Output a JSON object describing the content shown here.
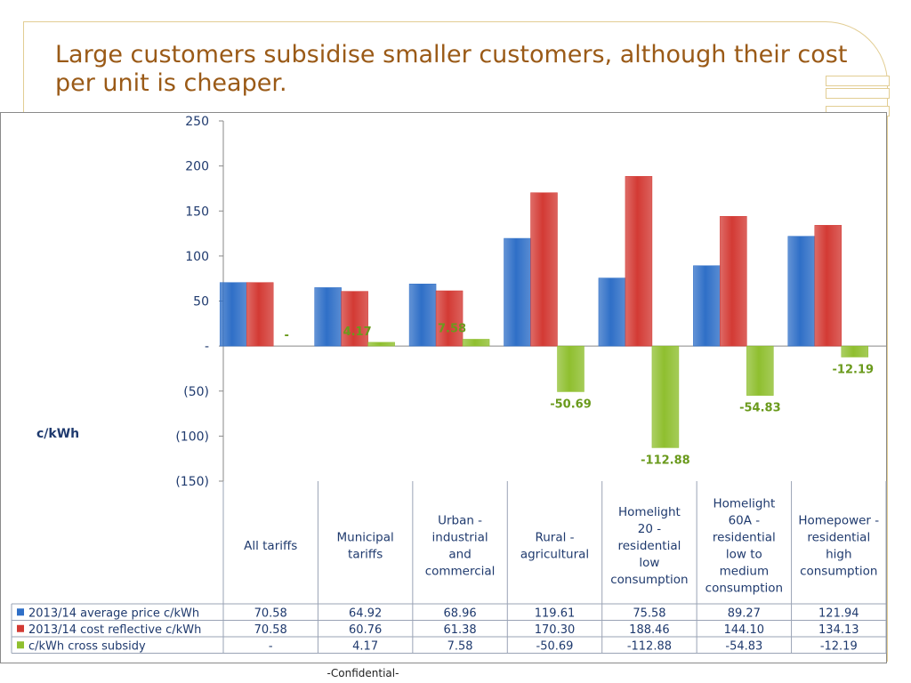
{
  "slide": {
    "title": "Large customers subsidise smaller customers, although their cost per unit is cheaper.",
    "footer": "-Confidential-"
  },
  "colors": {
    "series1": "#2f6fc7",
    "series2": "#d33a34",
    "series3": "#8fbf2f",
    "title": "#9a5a17",
    "accent_gold": "#e2cd93"
  },
  "chart_data": {
    "type": "bar",
    "ylabel": "c/kWh",
    "ylim": [
      -150,
      250
    ],
    "yticks": [
      250,
      200,
      150,
      100,
      50,
      0,
      -50,
      -100,
      -150
    ],
    "ytick_labels": [
      "250",
      "200",
      "150",
      "100",
      "50",
      "-",
      "(50)",
      "(100)",
      "(150)"
    ],
    "grid": false,
    "legend": "data-table",
    "categories": [
      "All tariffs",
      "Municipal tariffs",
      "Urban - industrial and commercial",
      "Rural - agricultural",
      "Homelight 20 - residential low consumption",
      "Homelight 60A - residential low to medium consumption",
      "Homepower - residential high consumption"
    ],
    "series": [
      {
        "name": "2013/14 average price c/kWh",
        "values": [
          70.58,
          64.92,
          68.96,
          119.61,
          75.58,
          89.27,
          121.94
        ],
        "table_values": [
          "70.58",
          "64.92",
          "68.96",
          "119.61",
          "75.58",
          "89.27",
          "121.94"
        ]
      },
      {
        "name": "2013/14 cost reflective c/kWh",
        "values": [
          70.58,
          60.76,
          61.38,
          170.3,
          188.46,
          144.1,
          134.13
        ],
        "table_values": [
          "70.58",
          "60.76",
          "61.38",
          "170.30",
          "188.46",
          "144.10",
          "134.13"
        ]
      },
      {
        "name": "c/kWh cross subsidy",
        "values": [
          0,
          4.17,
          7.58,
          -50.69,
          -112.88,
          -54.83,
          -12.19
        ],
        "table_values": [
          "-",
          "4.17",
          "7.58",
          "-50.69",
          "-112.88",
          "-54.83",
          "-12.19"
        ],
        "data_labels": [
          "-",
          "4.17",
          "7.58",
          "-50.69",
          "-112.88",
          "-54.83",
          "-12.19"
        ]
      }
    ]
  }
}
